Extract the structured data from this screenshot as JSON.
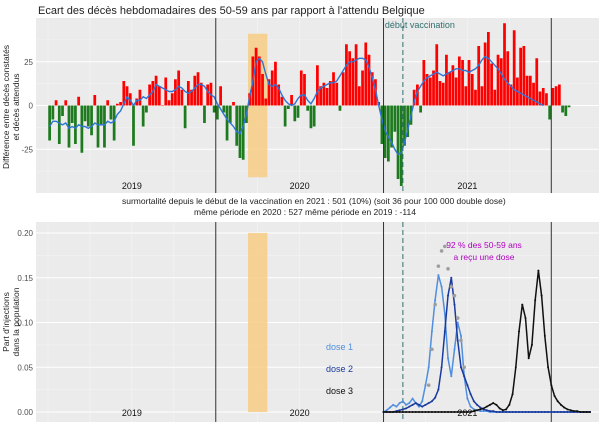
{
  "page_title": "Ecart des décès hebdomadaires des 50-59 ans par rapport à l'attendu Belgique",
  "chart_data": [
    {
      "type": "bar",
      "title": "Ecart des décès hebdomadaires des 50-59 ans par rapport à l'attendu Belgique",
      "ylabel_lines": [
        "Différence entre décès constatés",
        "et décès attendus"
      ],
      "yticks": [
        "25",
        "0",
        "-25"
      ],
      "ytick_values": [
        25,
        0,
        -25
      ],
      "ylim": [
        -50,
        50
      ],
      "x_week_range": [
        0,
        168
      ],
      "year_labels": [
        {
          "label": "2019",
          "week": 26
        },
        {
          "label": "2020",
          "week": 78
        },
        {
          "label": "2021",
          "week": 130
        }
      ],
      "year_boundaries_weeks": [
        52,
        104,
        156
      ],
      "shaded_period_weeks": [
        62,
        68
      ],
      "vaccination_line": {
        "label": "début vaccination",
        "week": 110
      },
      "positive_color": "#ff0000",
      "negative_color": "#1e7a1e",
      "smoothed_line_color": "#2e75d6",
      "shade_color": "#f7cc85",
      "weekly_values": [
        -20,
        -8,
        3,
        -22,
        -6,
        3,
        -24,
        -10,
        -22,
        5,
        -27,
        -9,
        -12,
        -17,
        6,
        -24,
        -11,
        -24,
        3,
        -8,
        -20,
        1,
        2,
        14,
        11,
        7,
        -23,
        4,
        9,
        -12,
        -4,
        12,
        14,
        17,
        11,
        0,
        16,
        3,
        7,
        15,
        20,
        9,
        -13,
        14,
        9,
        17,
        19,
        13,
        -10,
        12,
        13,
        -4,
        -8,
        11,
        -4,
        -20,
        -10,
        2,
        -23,
        -30,
        -31,
        -10,
        7,
        28,
        33,
        28,
        18,
        4,
        15,
        20,
        25,
        12,
        5,
        -12,
        -2,
        6,
        -9,
        -7,
        20,
        18,
        -3,
        -13,
        -12,
        23,
        11,
        13,
        10,
        14,
        19,
        13,
        -3,
        19,
        35,
        31,
        27,
        35,
        11,
        20,
        36,
        29,
        19,
        15,
        2,
        -22,
        -30,
        -32,
        -24,
        -15,
        -42,
        -46,
        -23,
        -18,
        -11,
        9,
        12,
        -4,
        26,
        18,
        16,
        20,
        35,
        14,
        13,
        29,
        19,
        23,
        16,
        28,
        26,
        11,
        26,
        18,
        9,
        34,
        11,
        36,
        42,
        24,
        9,
        29,
        27,
        47,
        31,
        12,
        43,
        16,
        33,
        34,
        17,
        17,
        13,
        27,
        8,
        10,
        7,
        -8,
        10,
        11,
        12,
        -4,
        -6,
        -1
      ],
      "smoothed_values": [
        -12,
        -9,
        -9,
        -10,
        -11,
        -10,
        -13,
        -12,
        -13,
        -11,
        -12,
        -12,
        -13,
        -12,
        -10,
        -11,
        -11,
        -11,
        -9,
        -10,
        -9,
        -5,
        -3,
        1,
        5,
        3,
        0,
        3,
        3,
        5,
        4,
        6,
        8,
        12,
        11,
        10,
        9,
        8,
        8,
        9,
        11,
        10,
        8,
        7,
        8,
        10,
        12,
        12,
        11,
        8,
        6,
        5,
        1,
        -2,
        -5,
        -8,
        -10,
        -12,
        -15,
        -16,
        -12,
        -5,
        5,
        14,
        25,
        27,
        25,
        18,
        12,
        11,
        12,
        10,
        6,
        3,
        1,
        0,
        1,
        4,
        6,
        6,
        3,
        1,
        4,
        8,
        10,
        11,
        12,
        13,
        13,
        14,
        17,
        20,
        23,
        25,
        25,
        26,
        27,
        27,
        26,
        22,
        16,
        9,
        0,
        -8,
        -14,
        -18,
        -21,
        -25,
        -28,
        -27,
        -21,
        -14,
        -6,
        2,
        8,
        11,
        14,
        16,
        17,
        18,
        19,
        18,
        17,
        18,
        19,
        20,
        21,
        21,
        20,
        20,
        19,
        20,
        21,
        23,
        26,
        28,
        27,
        25,
        23,
        21,
        18,
        15,
        13,
        11,
        9,
        8,
        7,
        6,
        5,
        4,
        3,
        2,
        1,
        0
      ]
    },
    {
      "type": "line",
      "ylabel_lines": [
        "Part d'injections",
        "dans la population"
      ],
      "yticks": [
        "0.20",
        "0.15",
        "0.10",
        "0.05",
        "0.00"
      ],
      "ytick_values": [
        0.2,
        0.15,
        0.1,
        0.05,
        0.0
      ],
      "ylim": [
        0,
        0.2
      ],
      "x_week_range": [
        0,
        168
      ],
      "year_labels": [
        {
          "label": "2019",
          "week": 26
        },
        {
          "label": "2020",
          "week": 78
        },
        {
          "label": "2021",
          "week": 130
        }
      ],
      "year_boundaries_weeks": [
        52,
        104,
        156
      ],
      "shaded_period_weeks": [
        62,
        68
      ],
      "vaccination_line_week": 110,
      "summary_lines": [
        "surmortalité depuis le début de la vaccination en 2021 : 501  (10%)          (soit 36 pour 100 000 double dose)",
        "même période en 2020 : 527          même période en 2019 : -114"
      ],
      "annotation": {
        "lines": [
          "92 % des 50-59 ans",
          "a reçu une dose"
        ],
        "color": "#b000c0"
      },
      "series": [
        {
          "name": "dose 1",
          "color": "#4f8fdf",
          "start_week": 104,
          "values": [
            0.0,
            0.002,
            0.005,
            0.008,
            0.006,
            0.01,
            0.012,
            0.008,
            0.01,
            0.015,
            0.01,
            0.006,
            0.012,
            0.03,
            0.05,
            0.09,
            0.125,
            0.153,
            0.14,
            0.11,
            0.06,
            0.04,
            0.07,
            0.1,
            0.085,
            0.04,
            0.015,
            0.006,
            0.003,
            0.002,
            0.001,
            0.001,
            0.001,
            0.0,
            0.0,
            0.0,
            0.0,
            0.0,
            0.0,
            0.0,
            0.0,
            0.0,
            0.0,
            0.0,
            0.0,
            0.0,
            0.0,
            0.0,
            0.0,
            0.0,
            0.0,
            0.0,
            0.0,
            0.0,
            0.0,
            0.0,
            0.0,
            0.0,
            0.0,
            0.0,
            0.0,
            0.0,
            0.0,
            0.0,
            0.0
          ]
        },
        {
          "name": "dose 2",
          "color": "#1a3a9e",
          "start_week": 104,
          "values": [
            0.0,
            0.0,
            0.0,
            0.0,
            0.001,
            0.002,
            0.003,
            0.004,
            0.006,
            0.008,
            0.01,
            0.008,
            0.006,
            0.008,
            0.01,
            0.012,
            0.016,
            0.025,
            0.05,
            0.09,
            0.13,
            0.15,
            0.12,
            0.08,
            0.05,
            0.04,
            0.03,
            0.02,
            0.012,
            0.008,
            0.005,
            0.003,
            0.002,
            0.001,
            0.001,
            0.0,
            0.0,
            0.0,
            0.0,
            0.0,
            0.0,
            0.0,
            0.0,
            0.0,
            0.0,
            0.0,
            0.0,
            0.0,
            0.0,
            0.0,
            0.0,
            0.0,
            0.0,
            0.0,
            0.0,
            0.0,
            0.0,
            0.0,
            0.0,
            0.0,
            0.0,
            0.0,
            0.0,
            0.0,
            0.0
          ]
        },
        {
          "name": "dose 3",
          "color": "#101010",
          "start_week": 104,
          "values": [
            0.0,
            0.0,
            0.0,
            0.0,
            0.0,
            0.0,
            0.0,
            0.0,
            0.0,
            0.0,
            0.0,
            0.0,
            0.0,
            0.0,
            0.0,
            0.0,
            0.0,
            0.0,
            0.0,
            0.0,
            0.0,
            0.0,
            0.0,
            0.0,
            0.0,
            0.0,
            0.0,
            0.0,
            0.001,
            0.002,
            0.003,
            0.004,
            0.006,
            0.008,
            0.01,
            0.008,
            0.004,
            0.002,
            0.003,
            0.008,
            0.02,
            0.05,
            0.09,
            0.12,
            0.105,
            0.06,
            0.075,
            0.125,
            0.158,
            0.13,
            0.085,
            0.05,
            0.03,
            0.018,
            0.012,
            0.008,
            0.005,
            0.003,
            0.002,
            0.001,
            0.001,
            0.0,
            0.0,
            0.0,
            0.0
          ]
        },
        {
          "name": "dose 1 (points)",
          "color": "#9e9e9e",
          "start_week": 118,
          "values": [
            0.03,
            0.07,
            0.12,
            0.163,
            0.18,
            0.185,
            0.16,
            0.14,
            0.13,
            0.105,
            0.08,
            0.05
          ]
        }
      ]
    }
  ]
}
